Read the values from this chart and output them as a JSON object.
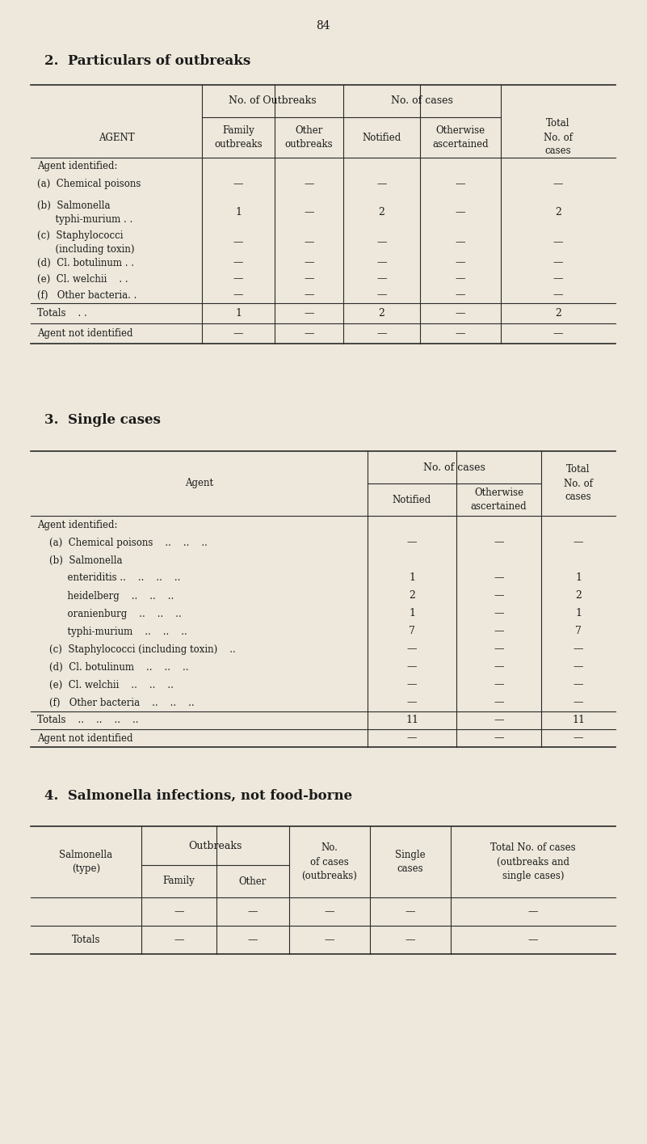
{
  "page_number": "84",
  "bg_color": "#ede8db",
  "text_color": "#1a1a1a",
  "section2_title": "2.  Particulars of outbreaks",
  "section3_title": "3.  Single cases",
  "section4_title": "4.  Salmonella infections, not food-borne"
}
